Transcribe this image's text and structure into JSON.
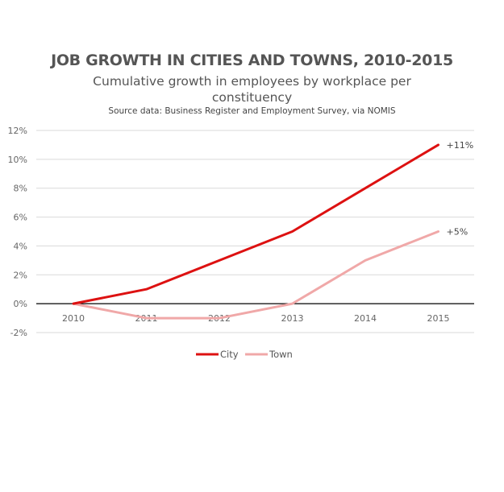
{
  "chart_data": {
    "type": "line",
    "title": "JOB GROWTH IN CITIES AND TOWNS, 2010-2015",
    "subtitle": "Cumulative growth in employees by workplace per constituency",
    "source": "Source data: Business Register and Employment Survey, via NOMIS",
    "xlabel": "",
    "ylabel": "",
    "x": [
      "2010",
      "2011",
      "2012",
      "2013",
      "2014",
      "2015"
    ],
    "ylim": [
      -2,
      12
    ],
    "yticks": [
      -2,
      0,
      2,
      4,
      6,
      8,
      10,
      12
    ],
    "ytick_labels": [
      "-2%",
      "0%",
      "2%",
      "4%",
      "6%",
      "8%",
      "10%",
      "12%"
    ],
    "grid": true,
    "legend_position": "bottom",
    "series": [
      {
        "name": "City",
        "values": [
          0,
          1,
          3,
          5,
          8,
          11
        ],
        "color": "#dd1111",
        "end_label": "+11%"
      },
      {
        "name": "Town",
        "values": [
          0,
          -1,
          -1,
          0,
          3,
          5
        ],
        "color": "#f0a8a8",
        "end_label": "+5%"
      }
    ]
  }
}
